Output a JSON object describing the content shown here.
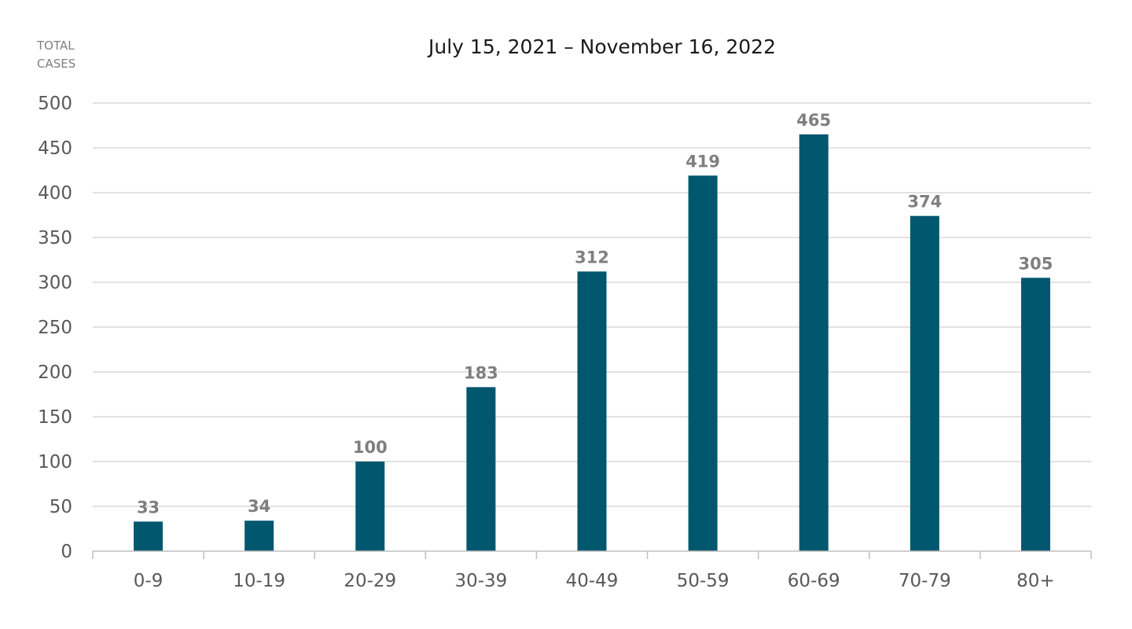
{
  "chart_data": {
    "type": "bar",
    "title": "July 15, 2021 – November 16, 2022",
    "ylabel_lines": [
      "TOTAL",
      "CASES"
    ],
    "xlabel": "",
    "categories": [
      "0-9",
      "10-19",
      "20-29",
      "30-39",
      "40-49",
      "50-59",
      "60-69",
      "70-79",
      "80+"
    ],
    "values": [
      33,
      34,
      100,
      183,
      312,
      419,
      465,
      374,
      305
    ],
    "data_labels": [
      "33",
      "34",
      "100",
      "183",
      "312",
      "419",
      "465",
      "374",
      "305"
    ],
    "ylim": [
      0,
      500
    ],
    "yticks": [
      0,
      50,
      100,
      150,
      200,
      250,
      300,
      350,
      400,
      450,
      500
    ],
    "grid": true,
    "legend": "none",
    "colors": {
      "bar": "#00576e",
      "data_label": "#7f7f7f",
      "grid": "#d9d9d9",
      "axis_text": "#595959"
    }
  }
}
